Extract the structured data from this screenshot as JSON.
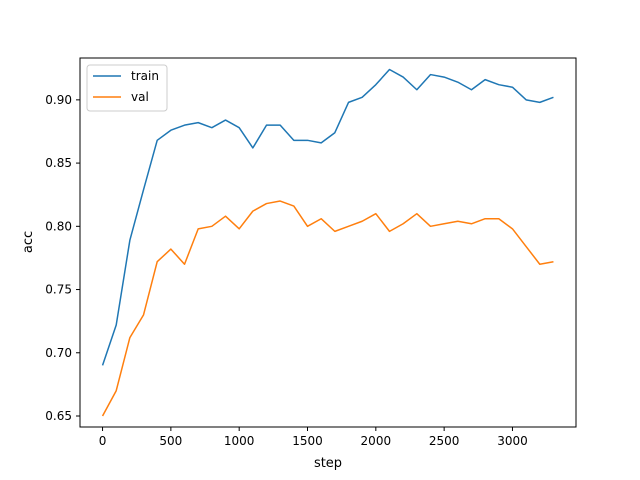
{
  "chart_data": {
    "type": "line",
    "title": "",
    "xlabel": "step",
    "ylabel": "acc",
    "xlim": [
      -165,
      3465
    ],
    "ylim": [
      0.6413,
      0.9331
    ],
    "xticks": [
      0,
      500,
      1000,
      1500,
      2000,
      2500,
      3000
    ],
    "xtick_labels": [
      "0",
      "500",
      "1000",
      "1500",
      "2000",
      "2500",
      "3000"
    ],
    "yticks": [
      0.65,
      0.7,
      0.75,
      0.8,
      0.85,
      0.9
    ],
    "ytick_labels": [
      "0.65",
      "0.70",
      "0.75",
      "0.80",
      "0.85",
      "0.90"
    ],
    "grid": false,
    "legend_position": "top-left",
    "x": [
      0,
      100,
      200,
      300,
      400,
      500,
      600,
      700,
      800,
      900,
      1000,
      1100,
      1200,
      1300,
      1400,
      1500,
      1600,
      1700,
      1800,
      1900,
      2000,
      2100,
      2200,
      2300,
      2400,
      2500,
      2600,
      2700,
      2800,
      2900,
      3000,
      3100,
      3200,
      3300
    ],
    "series": [
      {
        "name": "train",
        "color": "#1f77b4",
        "values": [
          0.69,
          0.722,
          0.789,
          0.829,
          0.868,
          0.876,
          0.88,
          0.882,
          0.878,
          0.884,
          0.878,
          0.862,
          0.88,
          0.88,
          0.868,
          0.868,
          0.866,
          0.874,
          0.898,
          0.902,
          0.912,
          0.924,
          0.918,
          0.908,
          0.92,
          0.918,
          0.914,
          0.908,
          0.916,
          0.912,
          0.91,
          0.9,
          0.898,
          0.902
        ]
      },
      {
        "name": "val",
        "color": "#ff7f0e",
        "values": [
          0.65,
          0.67,
          0.712,
          0.73,
          0.772,
          0.782,
          0.77,
          0.798,
          0.8,
          0.808,
          0.798,
          0.812,
          0.818,
          0.82,
          0.816,
          0.8,
          0.806,
          0.796,
          0.8,
          0.804,
          0.81,
          0.796,
          0.802,
          0.81,
          0.8,
          0.802,
          0.804,
          0.802,
          0.806,
          0.806,
          0.798,
          0.784,
          0.77,
          0.772
        ]
      }
    ]
  }
}
